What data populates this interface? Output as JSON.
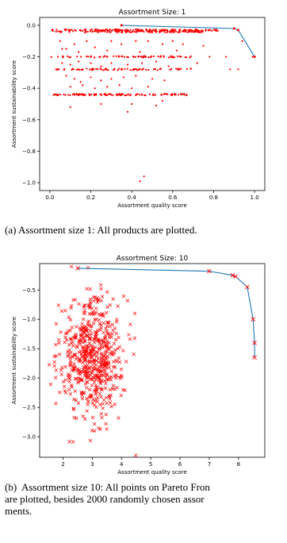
{
  "chart_data": [
    {
      "type": "scatter",
      "title": "Assortment Size: 1",
      "xlabel": "Assortment quality score",
      "ylabel": "Assortment sustainability score",
      "xlim": [
        -0.05,
        1.05
      ],
      "ylim": [
        -1.05,
        0.05
      ],
      "xticks": [
        "0.0",
        "0.2",
        "0.4",
        "0.6",
        "0.8",
        "1.0"
      ],
      "yticks": [
        "0.0",
        "−0.2",
        "−0.4",
        "−0.6",
        "−0.8",
        "−1.0"
      ],
      "marker": "dot",
      "point_color": "#ff0000",
      "line_color": "#1f77b4",
      "grid": false,
      "bands": [
        {
          "y": -0.03,
          "x_min": 0.0,
          "x_max": 0.82,
          "count": 150
        },
        {
          "y": -0.04,
          "x_min": 0.03,
          "x_max": 0.75,
          "count": 120
        },
        {
          "y": -0.2,
          "x_min": 0.0,
          "x_max": 0.7,
          "count": 70
        },
        {
          "y": -0.28,
          "x_min": 0.03,
          "x_max": 0.7,
          "count": 80
        },
        {
          "y": -0.44,
          "x_min": 0.01,
          "x_max": 0.68,
          "count": 110
        }
      ],
      "scatter_points": [
        [
          0.05,
          -0.1
        ],
        [
          0.08,
          -0.15
        ],
        [
          0.12,
          -0.12
        ],
        [
          0.18,
          -0.1
        ],
        [
          0.22,
          -0.14
        ],
        [
          0.3,
          -0.1
        ],
        [
          0.35,
          -0.12
        ],
        [
          0.42,
          -0.1
        ],
        [
          0.48,
          -0.1
        ],
        [
          0.55,
          -0.12
        ],
        [
          0.6,
          -0.1
        ],
        [
          0.65,
          -0.12
        ],
        [
          0.06,
          -0.24
        ],
        [
          0.1,
          -0.25
        ],
        [
          0.14,
          -0.23
        ],
        [
          0.2,
          -0.24
        ],
        [
          0.25,
          -0.26
        ],
        [
          0.3,
          -0.24
        ],
        [
          0.38,
          -0.25
        ],
        [
          0.45,
          -0.24
        ],
        [
          0.52,
          -0.23
        ],
        [
          0.58,
          -0.26
        ],
        [
          0.08,
          -0.32
        ],
        [
          0.12,
          -0.34
        ],
        [
          0.15,
          -0.36
        ],
        [
          0.2,
          -0.33
        ],
        [
          0.25,
          -0.35
        ],
        [
          0.3,
          -0.34
        ],
        [
          0.36,
          -0.33
        ],
        [
          0.42,
          -0.32
        ],
        [
          0.5,
          -0.34
        ],
        [
          0.56,
          -0.35
        ],
        [
          0.1,
          -0.39
        ],
        [
          0.16,
          -0.38
        ],
        [
          0.22,
          -0.4
        ],
        [
          0.28,
          -0.39
        ],
        [
          0.34,
          -0.38
        ],
        [
          0.4,
          -0.4
        ],
        [
          0.48,
          -0.39
        ],
        [
          0.06,
          -0.15
        ],
        [
          0.14,
          -0.17
        ],
        [
          0.28,
          -0.16
        ],
        [
          0.44,
          -0.17
        ],
        [
          0.62,
          -0.16
        ],
        [
          0.1,
          -0.52
        ],
        [
          0.25,
          -0.5
        ],
        [
          0.4,
          -0.5
        ],
        [
          0.52,
          -0.51
        ],
        [
          0.38,
          -0.55
        ],
        [
          0.55,
          -0.48
        ],
        [
          0.46,
          -0.96
        ],
        [
          0.44,
          -0.99
        ],
        [
          0.88,
          -0.28
        ],
        [
          0.92,
          -0.28
        ],
        [
          0.94,
          -0.1
        ],
        [
          0.86,
          -0.2
        ],
        [
          0.75,
          -0.13
        ],
        [
          0.78,
          -0.2
        ],
        [
          0.72,
          -0.24
        ],
        [
          0.99,
          -0.2
        ],
        [
          0.9,
          -0.02
        ],
        [
          0.35,
          0.0
        ]
      ],
      "pareto_front": [
        [
          0.35,
          0.0
        ],
        [
          0.9,
          -0.02
        ],
        [
          0.92,
          -0.03
        ],
        [
          1.0,
          -0.2
        ]
      ]
    },
    {
      "type": "scatter",
      "title": "Assortment Size: 10",
      "xlabel": "Assortment quality score",
      "ylabel": "Assortment sustainability score",
      "xlim": [
        1.2,
        8.9
      ],
      "ylim": [
        -3.35,
        -0.05
      ],
      "xticks": [
        "2",
        "3",
        "4",
        "5",
        "6",
        "7",
        "8"
      ],
      "yticks": [
        "−0.5",
        "−1.0",
        "−1.5",
        "−2.0",
        "−2.5",
        "−3.0"
      ],
      "marker": "x",
      "point_color": "#ff0000",
      "line_color": "#1f77b4",
      "grid": false,
      "cloud": {
        "center": [
          3.0,
          -1.65
        ],
        "spread": [
          0.55,
          0.5
        ],
        "count": 600
      },
      "pareto_front": [
        [
          2.5,
          -0.13
        ],
        [
          7.0,
          -0.18
        ],
        [
          7.8,
          -0.25
        ],
        [
          7.9,
          -0.27
        ],
        [
          8.3,
          -0.45
        ],
        [
          8.5,
          -1.0
        ],
        [
          8.55,
          -1.4
        ],
        [
          8.55,
          -1.65
        ]
      ]
    }
  ],
  "captions": {
    "a": "(a)  Assortment size 1: All products are plotted.",
    "b": "(b)  Assortment size 10: All points on Pareto Fron\nare plotted, besides 2000 randomly chosen assor\nments."
  }
}
